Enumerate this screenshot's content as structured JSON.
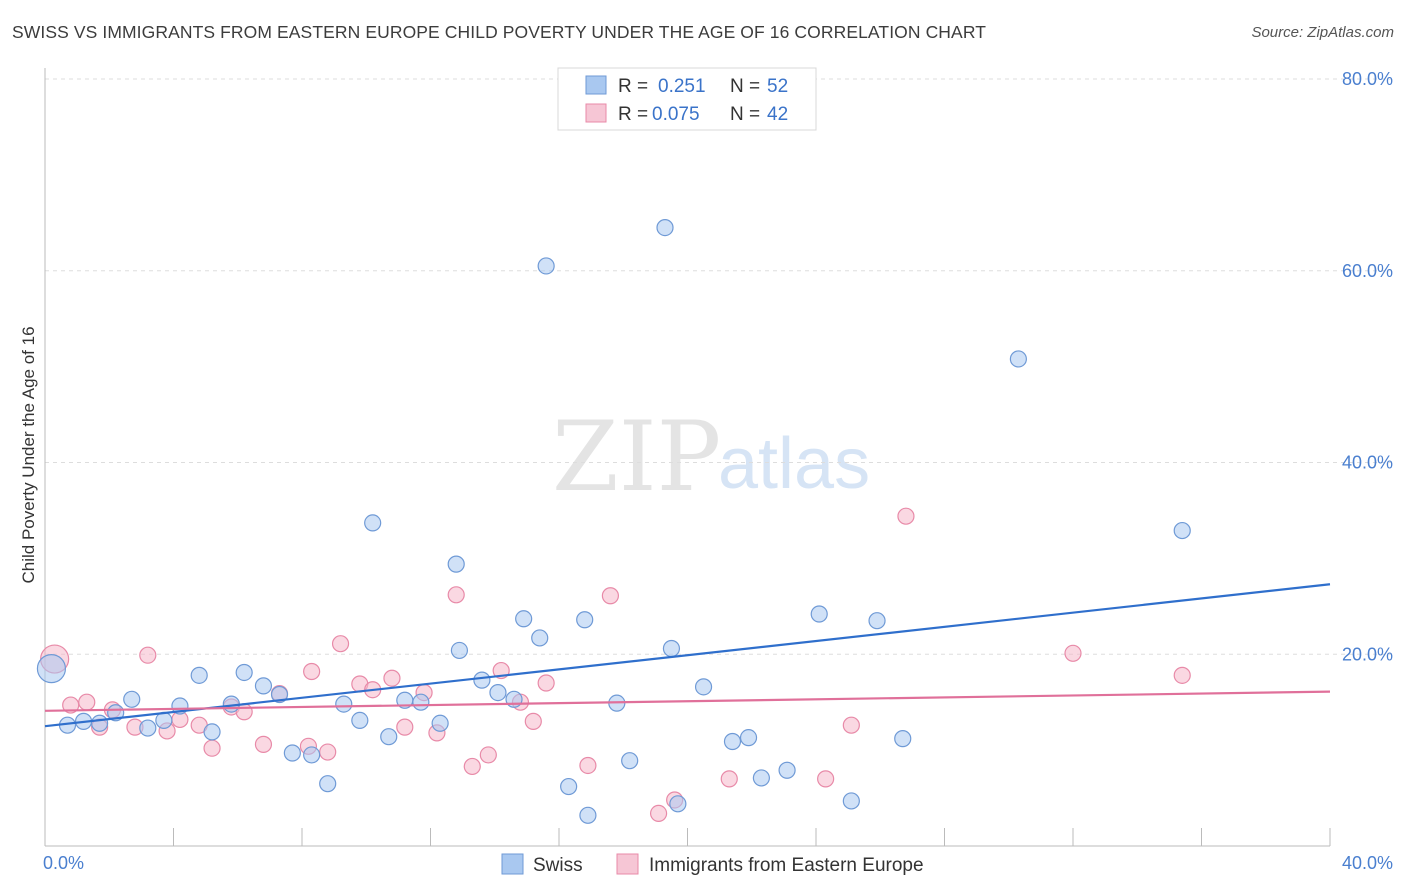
{
  "title": "SWISS VS IMMIGRANTS FROM EASTERN EUROPE CHILD POVERTY UNDER THE AGE OF 16 CORRELATION CHART",
  "source": "Source: ZipAtlas.com",
  "watermark": {
    "zip": "ZIP",
    "atlas": "atlas"
  },
  "colors": {
    "swiss_fill": "#a9c8f0",
    "swiss_stroke": "#6f9ad6",
    "swiss_line": "#2f6fcc",
    "imm_fill": "#f6b8cb",
    "imm_stroke": "#e88aa8",
    "imm_line": "#e0709a"
  },
  "legend": {
    "swiss": {
      "r_label": "R =",
      "r_value": "0.251",
      "n_label": "N =",
      "n_value": "52"
    },
    "immigrants": {
      "r_label": "R =",
      "r_value": "0.075",
      "n_label": "N =",
      "n_value": "42"
    }
  },
  "chart_data": {
    "type": "scatter",
    "title": "SWISS VS IMMIGRANTS FROM EASTERN EUROPE CHILD POVERTY UNDER THE AGE OF 16 CORRELATION CHART",
    "xlabel": "",
    "ylabel": "Child Poverty Under the Age of 16",
    "xlim": [
      0,
      40
    ],
    "ylim": [
      0,
      80
    ],
    "x_tick_labels": [
      "0.0%",
      "40.0%"
    ],
    "y_ticks": [
      20,
      40,
      60,
      80
    ],
    "y_tick_labels": [
      "20.0%",
      "40.0%",
      "60.0%",
      "80.0%"
    ],
    "grid": true,
    "legend_placement": "top-center",
    "series": [
      {
        "name": "Swiss",
        "points": [
          [
            0.2,
            18.5
          ],
          [
            0.7,
            12.6
          ],
          [
            1.2,
            13.0
          ],
          [
            1.7,
            12.8
          ],
          [
            2.2,
            13.9
          ],
          [
            2.7,
            15.3
          ],
          [
            3.2,
            12.3
          ],
          [
            3.7,
            13.1
          ],
          [
            4.2,
            14.6
          ],
          [
            4.8,
            17.8
          ],
          [
            5.2,
            11.9
          ],
          [
            5.8,
            14.8
          ],
          [
            6.2,
            18.1
          ],
          [
            6.8,
            16.7
          ],
          [
            7.3,
            15.8
          ],
          [
            7.7,
            9.7
          ],
          [
            8.3,
            9.5
          ],
          [
            8.8,
            6.5
          ],
          [
            9.3,
            14.8
          ],
          [
            9.8,
            13.1
          ],
          [
            10.2,
            33.7
          ],
          [
            10.7,
            11.4
          ],
          [
            11.2,
            15.2
          ],
          [
            11.7,
            15.0
          ],
          [
            12.3,
            12.8
          ],
          [
            12.8,
            29.4
          ],
          [
            12.9,
            20.4
          ],
          [
            13.6,
            17.3
          ],
          [
            14.1,
            16.0
          ],
          [
            14.6,
            15.3
          ],
          [
            14.9,
            23.7
          ],
          [
            15.4,
            21.7
          ],
          [
            15.6,
            60.5
          ],
          [
            16.3,
            6.2
          ],
          [
            16.8,
            23.6
          ],
          [
            16.9,
            3.2
          ],
          [
            17.8,
            14.9
          ],
          [
            18.2,
            8.9
          ],
          [
            19.3,
            64.5
          ],
          [
            19.5,
            20.6
          ],
          [
            19.7,
            4.4
          ],
          [
            20.5,
            16.6
          ],
          [
            21.4,
            10.9
          ],
          [
            21.9,
            11.3
          ],
          [
            22.3,
            7.1
          ],
          [
            23.1,
            7.9
          ],
          [
            24.1,
            24.2
          ],
          [
            25.1,
            4.7
          ],
          [
            25.9,
            23.5
          ],
          [
            26.7,
            11.2
          ],
          [
            30.3,
            50.8
          ],
          [
            35.4,
            32.9
          ]
        ]
      },
      {
        "name": "Immigrants from Eastern Europe",
        "points": [
          [
            0.3,
            19.5
          ],
          [
            0.8,
            14.7
          ],
          [
            1.3,
            15.0
          ],
          [
            1.7,
            12.4
          ],
          [
            2.1,
            14.2
          ],
          [
            2.8,
            12.4
          ],
          [
            3.2,
            19.9
          ],
          [
            3.8,
            12.0
          ],
          [
            4.2,
            13.2
          ],
          [
            4.8,
            12.6
          ],
          [
            5.2,
            10.2
          ],
          [
            5.8,
            14.5
          ],
          [
            6.2,
            14.0
          ],
          [
            6.8,
            10.6
          ],
          [
            7.3,
            15.9
          ],
          [
            8.2,
            10.4
          ],
          [
            8.3,
            18.2
          ],
          [
            8.8,
            9.8
          ],
          [
            9.2,
            21.1
          ],
          [
            9.8,
            16.9
          ],
          [
            10.2,
            16.3
          ],
          [
            10.8,
            17.5
          ],
          [
            11.2,
            12.4
          ],
          [
            11.8,
            16.0
          ],
          [
            12.2,
            11.8
          ],
          [
            12.8,
            26.2
          ],
          [
            13.3,
            8.3
          ],
          [
            13.8,
            9.5
          ],
          [
            14.2,
            18.3
          ],
          [
            14.8,
            15.0
          ],
          [
            15.2,
            13.0
          ],
          [
            15.6,
            17.0
          ],
          [
            16.9,
            8.4
          ],
          [
            17.6,
            26.1
          ],
          [
            19.1,
            3.4
          ],
          [
            19.6,
            4.8
          ],
          [
            21.3,
            7.0
          ],
          [
            24.3,
            7.0
          ],
          [
            25.1,
            12.6
          ],
          [
            26.8,
            34.4
          ],
          [
            32.0,
            20.1
          ],
          [
            35.4,
            17.8
          ]
        ]
      }
    ],
    "trend_lines": [
      {
        "name": "Swiss",
        "x": [
          0,
          40
        ],
        "y": [
          12.5,
          27.3
        ]
      },
      {
        "name": "Immigrants from Eastern Europe",
        "x": [
          0,
          40
        ],
        "y": [
          14.1,
          16.1
        ]
      }
    ]
  }
}
